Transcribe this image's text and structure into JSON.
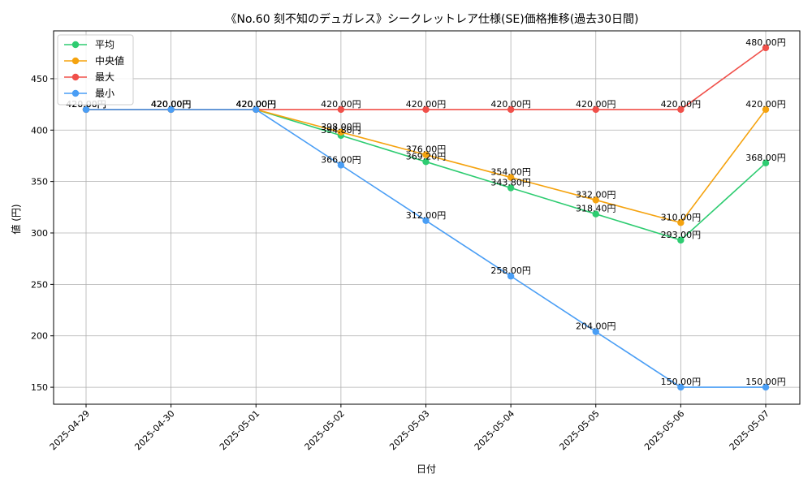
{
  "chart_data": {
    "type": "line",
    "title": "《No.60 刻不知のデュガレス》シークレットレア仕様(SE)価格推移(過去30日間)",
    "xlabel": "日付",
    "ylabel": "値 (円)",
    "categories": [
      "2025-04-29",
      "2025-04-30",
      "2025-05-01",
      "2025-05-02",
      "2025-05-03",
      "2025-05-04",
      "2025-05-05",
      "2025-05-06",
      "2025-05-07"
    ],
    "ylim": [
      133.5,
      496.5
    ],
    "yticks": [
      150,
      200,
      250,
      300,
      350,
      400,
      450
    ],
    "grid": true,
    "legend": "top-left",
    "value_suffix": "円",
    "series": [
      {
        "name": "平均",
        "color": "#2ecc71",
        "values": [
          420,
          420,
          420,
          394.8,
          369.2,
          343.8,
          318.4,
          293,
          368
        ]
      },
      {
        "name": "中央値",
        "color": "#f5a30f",
        "values": [
          420,
          420,
          420,
          398,
          376,
          354,
          332,
          310,
          420
        ]
      },
      {
        "name": "最大",
        "color": "#f0504a",
        "values": [
          420,
          420,
          420,
          420,
          420,
          420,
          420,
          420,
          480
        ]
      },
      {
        "name": "最小",
        "color": "#4a9ef5",
        "values": [
          420,
          420,
          420,
          366,
          312,
          258,
          204,
          150,
          150
        ]
      }
    ]
  }
}
